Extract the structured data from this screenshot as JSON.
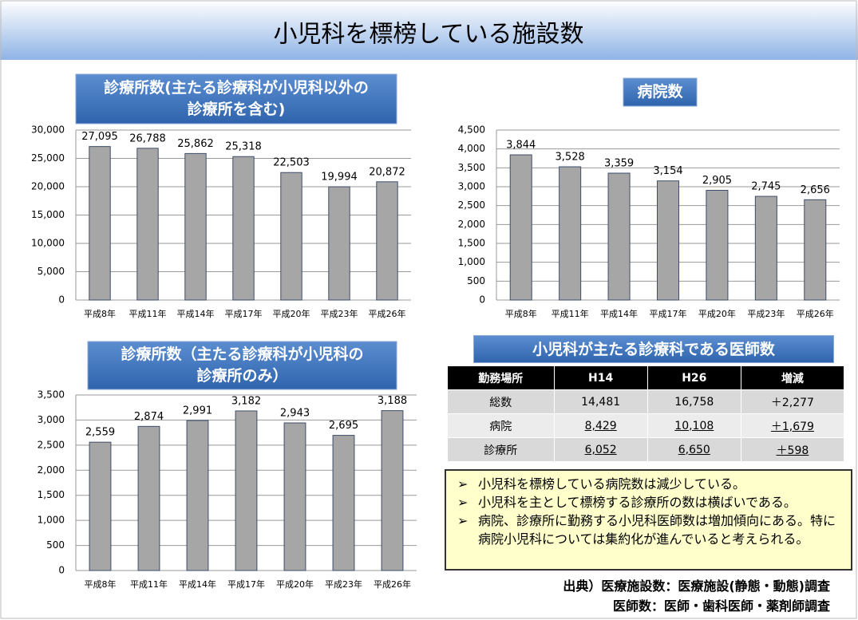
{
  "title": "小児科を標榜している施設数",
  "chart_data": [
    {
      "type": "bar",
      "title": [
        "診療所数(主たる診療科が小児科以外の",
        "診療所を含む)"
      ],
      "categories": [
        "平成8年",
        "平成11年",
        "平成14年",
        "平成17年",
        "平成20年",
        "平成23年",
        "平成26年"
      ],
      "values": [
        27095,
        26788,
        25862,
        25318,
        22503,
        19994,
        20872
      ],
      "value_labels": [
        "27,095",
        "26,788",
        "25,862",
        "25,318",
        "22,503",
        "19,994",
        "20,872"
      ],
      "color": "#a6a6a6",
      "ylim": [
        0,
        30000
      ],
      "yticks": [
        0,
        {
          "value": 5000,
          "label": "5,000"
        },
        {
          "value": 10000,
          "label": "10,000"
        },
        {
          "value": 15000,
          "label": "15,000"
        },
        {
          "value": 20000,
          "label": "20,000"
        },
        {
          "value": 25000,
          "label": "25,000"
        },
        {
          "value": 30000,
          "label": "30,000"
        }
      ],
      "grid": true
    },
    {
      "type": "bar",
      "title": [
        "病院数"
      ],
      "categories": [
        "平成8年",
        "平成11年",
        "平成14年",
        "平成17年",
        "平成20年",
        "平成23年",
        "平成26年"
      ],
      "values": [
        3844,
        3528,
        3359,
        3154,
        2905,
        2745,
        2656
      ],
      "value_labels": [
        "3,844",
        "3,528",
        "3,359",
        "3,154",
        "2,905",
        "2,745",
        "2,656"
      ],
      "color": "#a6a6a6",
      "ylim": [
        0,
        4500
      ],
      "yticks": [
        0,
        500,
        {
          "value": 1000,
          "label": "1,000"
        },
        {
          "value": 1500,
          "label": "1,500"
        },
        {
          "value": 2000,
          "label": "2,000"
        },
        {
          "value": 2500,
          "label": "2,500"
        },
        {
          "value": 3000,
          "label": "3,000"
        },
        {
          "value": 3500,
          "label": "3,500"
        },
        {
          "value": 4000,
          "label": "4,000"
        },
        {
          "value": 4500,
          "label": "4,500"
        }
      ],
      "grid": true
    },
    {
      "type": "bar",
      "title": [
        "診療所数（主たる診療科が小児科の",
        "診療所のみ）"
      ],
      "categories": [
        "平成8年",
        "平成11年",
        "平成14年",
        "平成17年",
        "平成20年",
        "平成23年",
        "平成26年"
      ],
      "values": [
        2559,
        2874,
        2991,
        3182,
        2943,
        2695,
        3188
      ],
      "value_labels": [
        "2,559",
        "2,874",
        "2,991",
        "3,182",
        "2,943",
        "2,695",
        "3,188"
      ],
      "color": "#a6a6a6",
      "ylim": [
        0,
        3500
      ],
      "yticks": [
        0,
        500,
        {
          "value": 1000,
          "label": "1,000"
        },
        {
          "value": 1500,
          "label": "1,500"
        },
        {
          "value": 2000,
          "label": "2,000"
        },
        {
          "value": 2500,
          "label": "2,500"
        },
        {
          "value": 3000,
          "label": "3,000"
        },
        {
          "value": 3500,
          "label": "3,500"
        }
      ],
      "grid": true
    }
  ],
  "table": {
    "title": "小児科が主たる診療科である医師数",
    "header": [
      "勤務場所",
      "H14",
      "H26",
      "増減"
    ],
    "rows": [
      [
        "総数",
        "14,481",
        "16,758",
        "＋2,277"
      ],
      [
        "病院",
        "8,429",
        "10,108",
        "＋1,679"
      ],
      [
        "診療所",
        "6,052",
        "6,650",
        "＋598"
      ]
    ]
  },
  "notes": [
    "小児科を標榜している病院数は減少している。",
    "小児科を主として標榜する診療所の数は横ばいである。",
    "病院、診療所に勤務する小児科医師数は増加傾向にある。特に病院小児科については集約化が進んでいると考えられる。"
  ],
  "source": [
    "出典）医療施設数：医療施設(静態・動態)調査",
    "医師数：医師・歯科医師・薬剤師調査"
  ]
}
